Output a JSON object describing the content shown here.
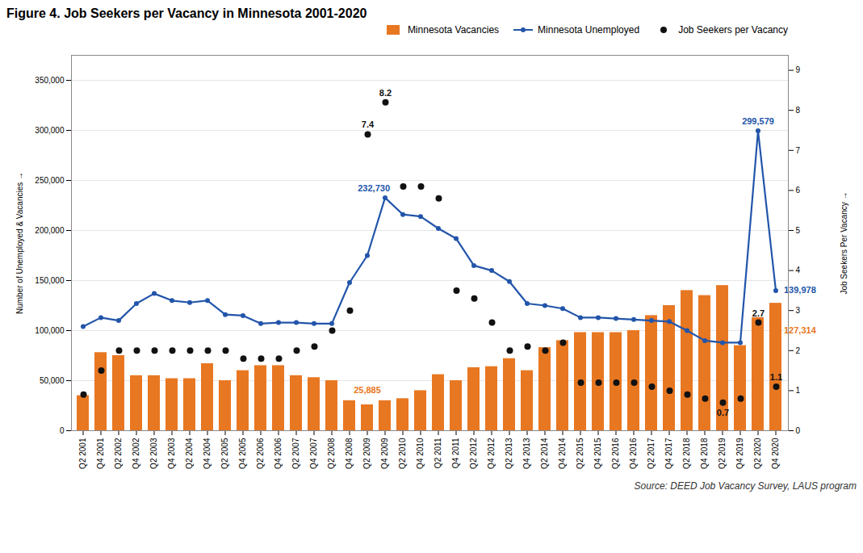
{
  "chart_data": {
    "type": "bar",
    "title": "Figure 4. Job Seekers per Vacancy in Minnesota 2001-2020",
    "ylabel": "Number of Unemployed & Vacancies",
    "y2label": "Job Seekers Per Vacancy",
    "source": "Source: DEED Job Vacancy Survey, LAUS program",
    "categories": [
      "Q2 2001",
      "Q4 2001",
      "Q2 2002",
      "Q4 2002",
      "Q2 2003",
      "Q4 2003",
      "Q2 2004",
      "Q4 2004",
      "Q2 2005",
      "Q4 2005",
      "Q2 2006",
      "Q4 2006",
      "Q2 2007",
      "Q4 2007",
      "Q2 2008",
      "Q4 2008",
      "Q2 2009",
      "Q4 2009",
      "Q2 2010",
      "Q4 2010",
      "Q2 2011",
      "Q4 2011",
      "Q2 2012",
      "Q4 2012",
      "Q2 2013",
      "Q4 2013",
      "Q2 2014",
      "Q4 2014",
      "Q2 2015",
      "Q4 2015",
      "Q2 2016",
      "Q4 2016",
      "Q2 2017",
      "Q4 2017",
      "Q2 2018",
      "Q4 2018",
      "Q2 2019",
      "Q4 2019",
      "Q2 2020",
      "Q4 2020"
    ],
    "series": [
      {
        "name": "Minnesota Vacancies",
        "type": "bar",
        "color": "#E87722",
        "values": [
          35000,
          78000,
          75000,
          55000,
          55000,
          52000,
          52000,
          67000,
          50000,
          60000,
          65000,
          65000,
          55000,
          53000,
          50000,
          30000,
          25885,
          30000,
          32000,
          40000,
          56000,
          50000,
          63000,
          64000,
          72000,
          60000,
          83000,
          90000,
          98000,
          98000,
          98000,
          100000,
          115000,
          125000,
          140000,
          135000,
          145000,
          85000,
          113000,
          127314
        ]
      },
      {
        "name": "Minnesota Unemployed",
        "type": "line",
        "color": "#2255AA",
        "marker": "circle",
        "values": [
          104000,
          113000,
          110000,
          127000,
          137000,
          130000,
          128000,
          130000,
          116000,
          115000,
          107000,
          108000,
          108000,
          107000,
          107000,
          148000,
          175000,
          232730,
          216000,
          214000,
          202000,
          192000,
          165000,
          160000,
          149000,
          127000,
          125000,
          122000,
          113000,
          113000,
          112000,
          111000,
          110000,
          109000,
          100000,
          90000,
          88000,
          88000,
          299579,
          139978
        ]
      },
      {
        "name": "Job Seekers per Vacancy",
        "type": "scatter",
        "color": "#111111",
        "axis": "y2",
        "values": [
          0.9,
          1.5,
          2.0,
          2.0,
          2.0,
          2.0,
          2.0,
          2.0,
          2.0,
          1.8,
          1.8,
          1.8,
          2.0,
          2.1,
          2.5,
          3.0,
          7.4,
          8.2,
          6.1,
          6.1,
          5.8,
          3.5,
          3.3,
          2.7,
          2.0,
          2.1,
          2.0,
          2.2,
          1.2,
          1.2,
          1.2,
          1.2,
          1.1,
          1.0,
          0.9,
          0.8,
          0.7,
          0.8,
          2.7,
          1.1
        ]
      }
    ],
    "ylim": [
      0,
      375000
    ],
    "yticks": [
      0,
      {
        "value": 50000,
        "label": "50,000"
      },
      {
        "value": 100000,
        "label": "100,000"
      },
      {
        "value": 150000,
        "label": "150,000"
      },
      {
        "value": 200000,
        "label": "200,000"
      },
      {
        "value": 250000,
        "label": "250,000"
      },
      {
        "value": 300000,
        "label": "300,000"
      },
      {
        "value": 350000,
        "label": "350,000"
      }
    ],
    "y2lim": [
      0,
      9.375
    ],
    "y2ticks": [
      0,
      1,
      2,
      3,
      4,
      5,
      6,
      7,
      8,
      9
    ],
    "grid": true,
    "legend": "upper right",
    "annotations": [
      {
        "text": "25,885",
        "series": "Minnesota Vacancies",
        "category": "Q2 2009"
      },
      {
        "text": "232,730",
        "series": "Minnesota Unemployed",
        "category": "Q4 2009"
      },
      {
        "text": "299,579",
        "series": "Minnesota Unemployed",
        "category": "Q2 2020"
      },
      {
        "text": "139,978",
        "series": "Minnesota Unemployed",
        "category": "Q4 2020"
      },
      {
        "text": "127,314",
        "series": "Minnesota Vacancies",
        "category": "Q4 2020"
      },
      {
        "text": "7.4",
        "series": "Job Seekers per Vacancy",
        "category": "Q2 2009"
      },
      {
        "text": "8.2",
        "series": "Job Seekers per Vacancy",
        "category": "Q4 2009"
      },
      {
        "text": "2.7",
        "series": "Job Seekers per Vacancy",
        "category": "Q2 2020"
      },
      {
        "text": "0.7",
        "series": "Job Seekers per Vacancy",
        "category": "Q2 2019"
      },
      {
        "text": "1.1",
        "series": "Job Seekers per Vacancy",
        "category": "Q4 2020"
      }
    ]
  }
}
